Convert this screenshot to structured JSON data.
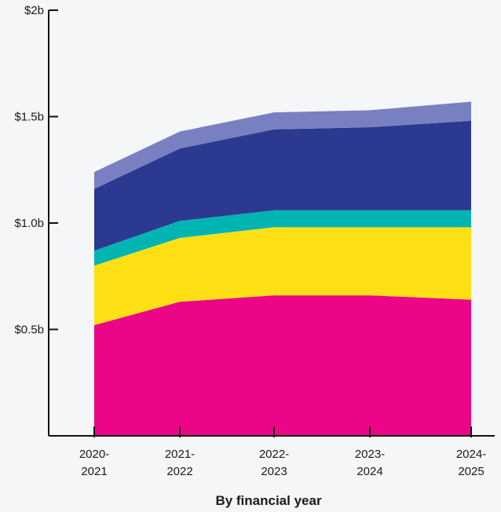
{
  "chart_data": {
    "type": "area",
    "stacked": true,
    "title": "",
    "xlabel": "By financial year",
    "ylabel": "",
    "x": [
      "2020-2021",
      "2021-2022",
      "2022-2023",
      "2023-2024",
      "2024-2025"
    ],
    "x_tick_labels": [
      [
        "2020-",
        "2021"
      ],
      [
        "2021-",
        "2022"
      ],
      [
        "2022-",
        "2023"
      ],
      [
        "2023-",
        "2024"
      ],
      [
        "2024-",
        "2025"
      ]
    ],
    "y_ticks": [
      {
        "value": 0.5,
        "label": "$0.5b"
      },
      {
        "value": 1.0,
        "label": "$1.0b"
      },
      {
        "value": 1.5,
        "label": "$1.5b"
      },
      {
        "value": 2.0,
        "label": "$2b"
      }
    ],
    "ylim": [
      0,
      2.0
    ],
    "grid": false,
    "legend": "none",
    "series": [
      {
        "color": "#ec0586",
        "values": [
          0.52,
          0.63,
          0.66,
          0.66,
          0.64
        ]
      },
      {
        "color": "#ffe015",
        "values": [
          0.28,
          0.3,
          0.32,
          0.32,
          0.34
        ]
      },
      {
        "color": "#00b5b1",
        "values": [
          0.07,
          0.08,
          0.08,
          0.08,
          0.08
        ]
      },
      {
        "color": "#2b3990",
        "values": [
          0.29,
          0.34,
          0.38,
          0.39,
          0.42
        ]
      },
      {
        "color": "#7980c2",
        "values": [
          0.08,
          0.08,
          0.08,
          0.08,
          0.09
        ]
      }
    ]
  }
}
